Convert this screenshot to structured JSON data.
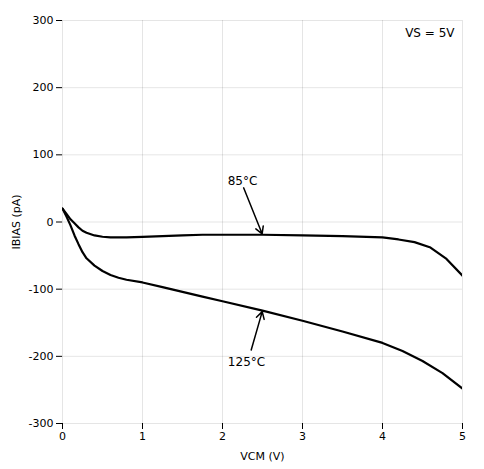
{
  "chart_data": {
    "type": "line",
    "xlabel": "VCM (V)",
    "ylabel": "IBIAS (pA)",
    "xlim": [
      0,
      5
    ],
    "ylim": [
      -300,
      300
    ],
    "xticks": [
      0,
      1,
      2,
      3,
      4,
      5
    ],
    "yticks": [
      -300,
      -200,
      -100,
      0,
      100,
      200,
      300
    ],
    "grid": true,
    "series": [
      {
        "name": "85°C",
        "color": "#000000",
        "x": [
          0.0,
          0.05,
          0.1,
          0.15,
          0.2,
          0.25,
          0.3,
          0.4,
          0.5,
          0.6,
          0.7,
          0.8,
          1.0,
          1.25,
          1.5,
          1.75,
          2.0,
          2.5,
          3.0,
          3.5,
          4.0,
          4.2,
          4.4,
          4.6,
          4.8,
          5.0
        ],
        "values": [
          20,
          12,
          4,
          -2,
          -8,
          -13,
          -16,
          -20,
          -22,
          -23,
          -23,
          -23,
          -22,
          -21,
          -20,
          -19,
          -19,
          -19,
          -20,
          -21,
          -23,
          -26,
          -30,
          -38,
          -55,
          -80
        ]
      },
      {
        "name": "125°C",
        "color": "#000000",
        "x": [
          0.0,
          0.05,
          0.1,
          0.15,
          0.2,
          0.25,
          0.3,
          0.4,
          0.5,
          0.6,
          0.7,
          0.8,
          1.0,
          1.25,
          1.5,
          1.75,
          2.0,
          2.5,
          3.0,
          3.5,
          4.0,
          4.25,
          4.5,
          4.75,
          5.0
        ],
        "values": [
          20,
          8,
          -5,
          -20,
          -33,
          -45,
          -54,
          -65,
          -73,
          -79,
          -83,
          -86,
          -90,
          -97,
          -104,
          -111,
          -118,
          -132,
          -147,
          -163,
          -180,
          -192,
          -207,
          -225,
          -248
        ]
      }
    ],
    "annotations": [
      {
        "text": "VS = 5V"
      },
      {
        "text": "85°C",
        "x": 2.25,
        "y": 55,
        "arrow_to": [
          2.5,
          -19
        ]
      },
      {
        "text": "125°C",
        "x": 2.3,
        "y": -215,
        "arrow_to": [
          2.5,
          -132
        ]
      }
    ]
  }
}
